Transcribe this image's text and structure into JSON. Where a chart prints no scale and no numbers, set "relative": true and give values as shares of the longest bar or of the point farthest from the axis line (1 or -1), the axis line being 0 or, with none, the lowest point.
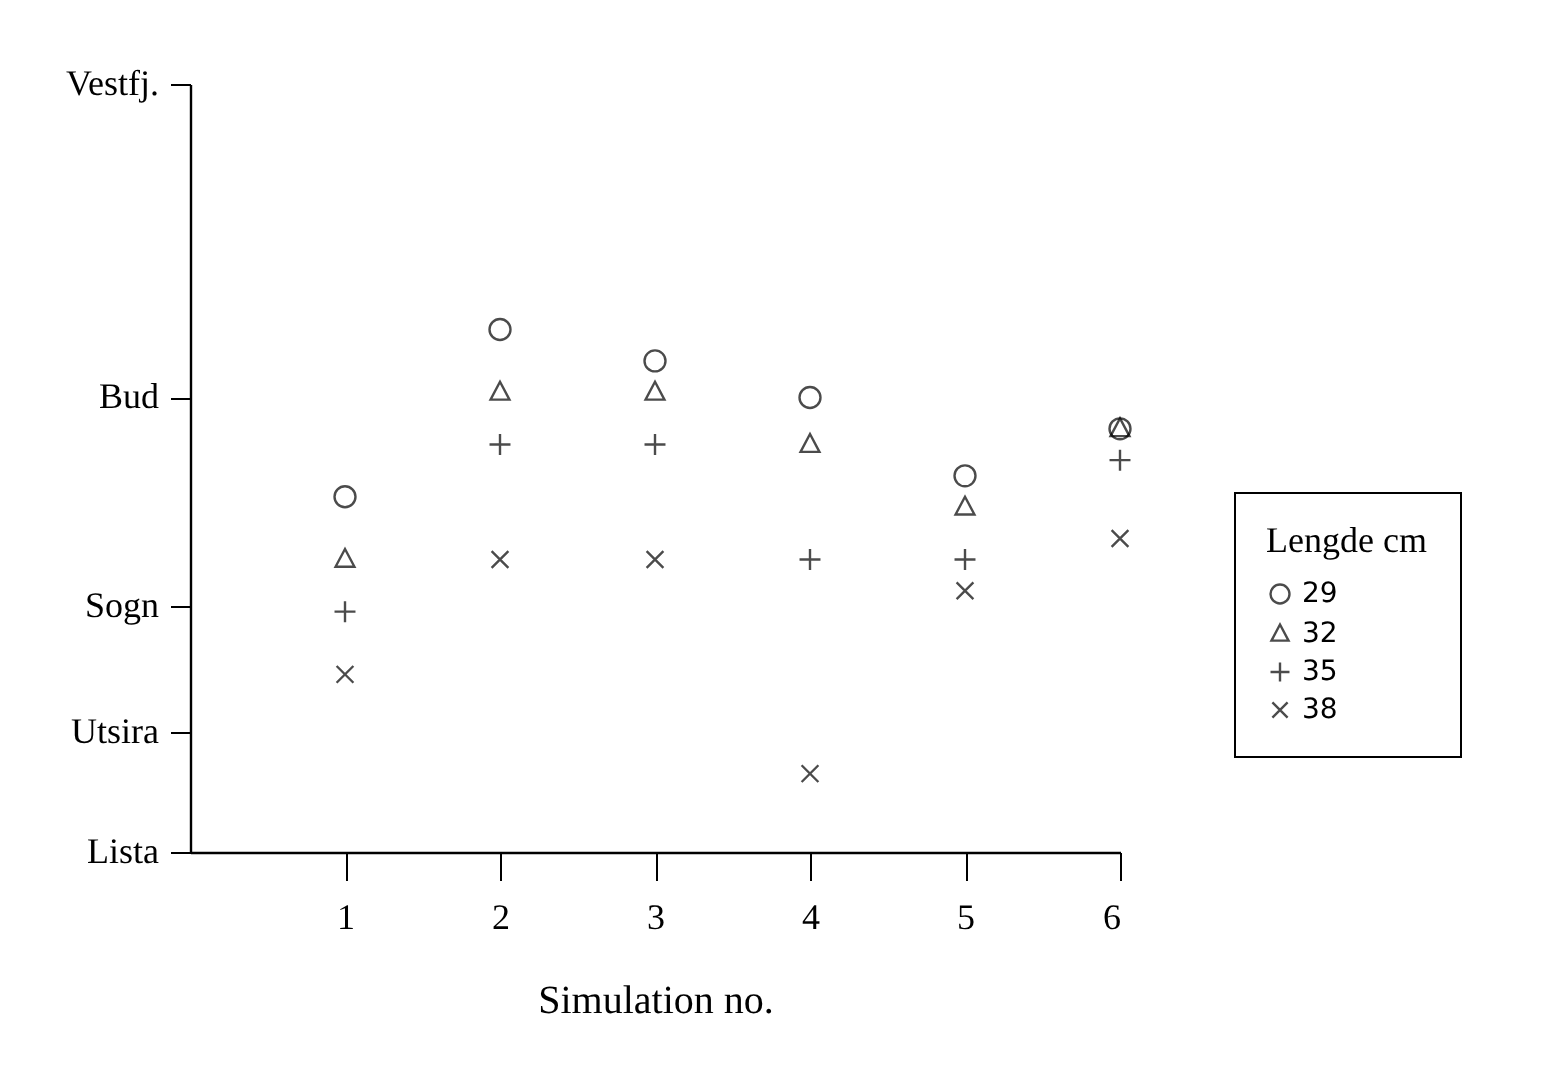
{
  "chart_data": {
    "type": "scatter",
    "relative": true,
    "xlabel": "Simulation no.",
    "legend_title": "Lengde cm",
    "legend": "right",
    "grid": false,
    "x": [
      1,
      2,
      3,
      4,
      5,
      6
    ],
    "xlim": [
      0,
      6
    ],
    "xticks": [
      1,
      2,
      3,
      4,
      5,
      6
    ],
    "ref_lines": [
      {
        "axis": "y",
        "value": 0,
        "label": "Lista"
      },
      {
        "axis": "y",
        "value": 0.23,
        "label": "Utsira"
      },
      {
        "axis": "y",
        "value": 0.47,
        "label": "Sogn"
      },
      {
        "axis": "y",
        "value": 0.87,
        "label": "Bud"
      },
      {
        "axis": "y",
        "value": 1.47,
        "label": "Vestfj."
      }
    ],
    "series": [
      {
        "name": "29",
        "color": "#000000",
        "marker": "circle",
        "values": [
          0.68,
          1,
          0.94,
          0.87,
          0.72,
          0.81
        ]
      },
      {
        "name": "32",
        "color": "#000000",
        "marker": "triangle",
        "values": [
          0.56,
          0.88,
          0.88,
          0.78,
          0.66,
          0.81
        ]
      },
      {
        "name": "35",
        "color": "#000000",
        "marker": "cross",
        "values": [
          0.46,
          0.78,
          0.78,
          0.56,
          0.56,
          0.75
        ]
      },
      {
        "name": "38",
        "color": "#000000",
        "marker": "x",
        "values": [
          0.34,
          0.56,
          0.56,
          0.15,
          0.5,
          0.6
        ]
      }
    ]
  }
}
